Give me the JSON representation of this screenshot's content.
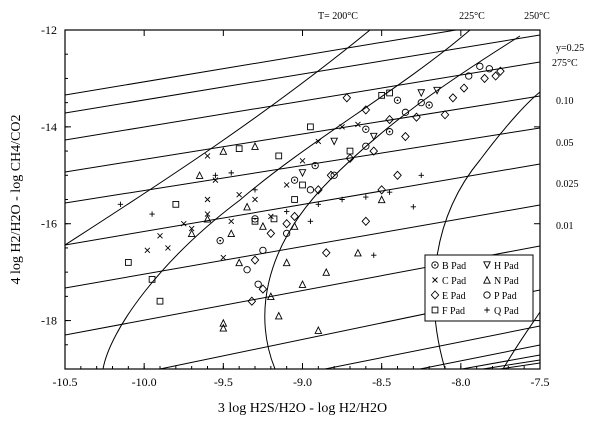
{
  "chart_data": {
    "type": "scatter",
    "xlabel": "3 log H2S/H2O - log H2/H2O",
    "ylabel": "4 log H2/H2O - log CH4/CO2",
    "xlim": [
      -10.5,
      -7.5
    ],
    "ylim": [
      -19,
      -12
    ],
    "xticks": [
      -10.5,
      -10.0,
      -9.5,
      -9.0,
      -8.5,
      -8.0,
      -7.5
    ],
    "xtick_labels": [
      "-10.5",
      "-10.0",
      "-9.5",
      "-9.0",
      "-8.5",
      "-8.0",
      "-7.5"
    ],
    "yticks": [
      -12,
      -14,
      -16,
      -18
    ],
    "ytick_labels": [
      "-12",
      "-14",
      "-16",
      "-18"
    ],
    "grid": false,
    "legend_position": "lower-right",
    "temperature_labels": [
      {
        "text": "T= 200°C",
        "x": -9.1
      },
      {
        "text": "225°C",
        "x": -8.2
      },
      {
        "text": "250°C",
        "x": -7.65
      },
      {
        "text": "275°C",
        "x": -7.5,
        "y": -12.9
      }
    ],
    "y_labels": [
      "y=0.25",
      "0.10",
      "0.05",
      "0.025",
      "0.01"
    ],
    "legend": [
      {
        "marker": "B",
        "label": "B Pad"
      },
      {
        "marker": "H",
        "label": "H Pad"
      },
      {
        "marker": "C",
        "label": "C Pad"
      },
      {
        "marker": "N",
        "label": "N Pad"
      },
      {
        "marker": "E",
        "label": "E Pad"
      },
      {
        "marker": "P",
        "label": "P Pad"
      },
      {
        "marker": "F",
        "label": "F Pad"
      },
      {
        "marker": "Q",
        "label": "Q Pad"
      }
    ],
    "series": [
      {
        "name": "B Pad",
        "marker": "B",
        "points": [
          [
            -9.52,
            -16.35
          ],
          [
            -9.3,
            -15.9
          ],
          [
            -8.92,
            -14.8
          ],
          [
            -8.6,
            -14.05
          ],
          [
            -8.2,
            -13.55
          ],
          [
            -8.4,
            -13.45
          ],
          [
            -9.05,
            -15.1
          ],
          [
            -8.45,
            -14.1
          ]
        ]
      },
      {
        "name": "H Pad",
        "marker": "H",
        "points": [
          [
            -8.25,
            -13.3
          ],
          [
            -8.8,
            -14.3
          ],
          [
            -9.0,
            -14.95
          ],
          [
            -8.55,
            -14.2
          ],
          [
            -8.15,
            -13.25
          ]
        ]
      },
      {
        "name": "C Pad",
        "marker": "C",
        "points": [
          [
            -9.6,
            -14.6
          ],
          [
            -9.55,
            -15.1
          ],
          [
            -9.4,
            -15.4
          ],
          [
            -9.2,
            -15.85
          ],
          [
            -9.45,
            -15.95
          ],
          [
            -9.6,
            -15.8
          ],
          [
            -9.3,
            -15.5
          ],
          [
            -9.1,
            -15.2
          ],
          [
            -9.0,
            -14.7
          ],
          [
            -8.9,
            -14.3
          ],
          [
            -8.75,
            -14.0
          ],
          [
            -8.65,
            -13.95
          ],
          [
            -9.85,
            -16.5
          ],
          [
            -9.98,
            -16.55
          ],
          [
            -9.7,
            -16.1
          ],
          [
            -9.9,
            -16.25
          ],
          [
            -9.75,
            -16.0
          ],
          [
            -9.5,
            -16.7
          ],
          [
            -9.6,
            -15.5
          ]
        ]
      },
      {
        "name": "E Pad",
        "marker": "E",
        "points": [
          [
            -8.72,
            -13.4
          ],
          [
            -8.6,
            -13.65
          ],
          [
            -8.45,
            -13.85
          ],
          [
            -8.28,
            -13.8
          ],
          [
            -8.1,
            -13.75
          ],
          [
            -7.98,
            -13.2
          ],
          [
            -7.85,
            -13.0
          ],
          [
            -7.78,
            -12.95
          ],
          [
            -7.75,
            -12.85
          ],
          [
            -8.35,
            -14.2
          ],
          [
            -8.55,
            -14.5
          ],
          [
            -8.7,
            -14.65
          ],
          [
            -8.82,
            -15.0
          ],
          [
            -8.9,
            -15.3
          ],
          [
            -9.05,
            -15.85
          ],
          [
            -9.1,
            -16.0
          ],
          [
            -9.2,
            -16.2
          ],
          [
            -9.3,
            -16.75
          ],
          [
            -9.32,
            -17.6
          ],
          [
            -8.85,
            -16.6
          ],
          [
            -8.6,
            -15.95
          ],
          [
            -8.4,
            -15.0
          ],
          [
            -8.5,
            -15.3
          ],
          [
            -9.25,
            -17.35
          ],
          [
            -8.05,
            -13.4
          ]
        ]
      },
      {
        "name": "F Pad",
        "marker": "F",
        "points": [
          [
            -9.9,
            -17.6
          ],
          [
            -9.95,
            -17.15
          ],
          [
            -10.1,
            -16.8
          ],
          [
            -9.8,
            -15.6
          ],
          [
            -9.4,
            -14.45
          ],
          [
            -9.15,
            -14.6
          ],
          [
            -8.95,
            -14.0
          ],
          [
            -8.5,
            -13.35
          ],
          [
            -8.45,
            -13.3
          ],
          [
            -9.18,
            -15.9
          ],
          [
            -9.3,
            -15.95
          ],
          [
            -9.05,
            -15.5
          ],
          [
            -9.0,
            -15.2
          ],
          [
            -8.7,
            -14.5
          ]
        ]
      },
      {
        "name": "N Pad",
        "marker": "N",
        "points": [
          [
            -9.5,
            -14.5
          ],
          [
            -9.3,
            -14.4
          ],
          [
            -9.65,
            -15.0
          ],
          [
            -9.6,
            -15.9
          ],
          [
            -9.7,
            -16.2
          ],
          [
            -9.4,
            -16.8
          ],
          [
            -9.2,
            -17.5
          ],
          [
            -9.0,
            -17.25
          ],
          [
            -9.1,
            -16.8
          ],
          [
            -9.5,
            -18.05
          ],
          [
            -9.5,
            -18.15
          ],
          [
            -9.15,
            -17.9
          ],
          [
            -8.9,
            -18.2
          ],
          [
            -8.85,
            -17.0
          ],
          [
            -8.65,
            -16.6
          ],
          [
            -8.5,
            -15.5
          ],
          [
            -9.35,
            -15.65
          ],
          [
            -9.05,
            -16.05
          ],
          [
            -9.45,
            -16.2
          ],
          [
            -9.25,
            -16.05
          ]
        ]
      },
      {
        "name": "P Pad",
        "marker": "P",
        "points": [
          [
            -9.35,
            -16.95
          ],
          [
            -9.28,
            -17.25
          ],
          [
            -9.1,
            -16.2
          ],
          [
            -8.95,
            -15.3
          ],
          [
            -8.8,
            -15.0
          ],
          [
            -8.6,
            -14.4
          ],
          [
            -8.35,
            -13.7
          ],
          [
            -8.25,
            -13.5
          ],
          [
            -7.95,
            -12.95
          ],
          [
            -7.88,
            -12.75
          ],
          [
            -7.82,
            -12.8
          ],
          [
            -9.25,
            -16.55
          ]
        ]
      },
      {
        "name": "Q Pad",
        "marker": "Q",
        "points": [
          [
            -10.15,
            -15.6
          ],
          [
            -9.95,
            -15.8
          ],
          [
            -9.55,
            -15.0
          ],
          [
            -9.45,
            -14.95
          ],
          [
            -9.3,
            -15.3
          ],
          [
            -8.9,
            -15.6
          ],
          [
            -8.75,
            -15.5
          ],
          [
            -8.6,
            -15.45
          ],
          [
            -8.45,
            -15.35
          ],
          [
            -8.25,
            -15.0
          ],
          [
            -8.55,
            -16.65
          ],
          [
            -8.3,
            -15.65
          ],
          [
            -9.1,
            -15.75
          ],
          [
            -8.95,
            -15.95
          ]
        ]
      }
    ]
  }
}
